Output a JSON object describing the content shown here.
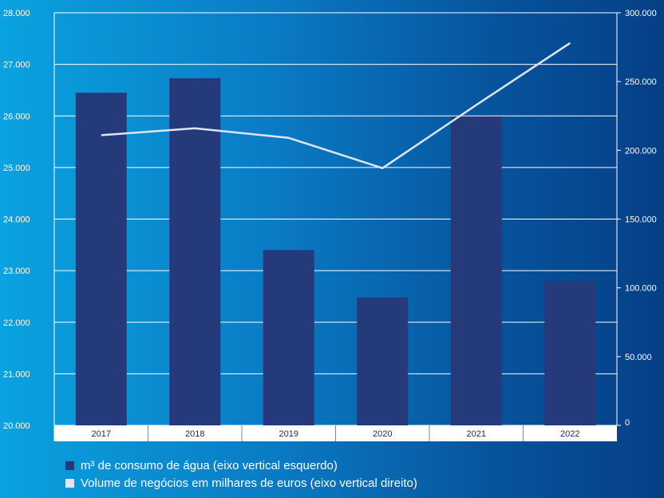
{
  "chart_data": {
    "type": "bar",
    "categories": [
      "2017",
      "2018",
      "2019",
      "2020",
      "2021",
      "2022"
    ],
    "series": [
      {
        "name": "m³ de consumo de água (eixo vertical esquerdo)",
        "type": "bar",
        "axis": "left",
        "values": [
          26450,
          26730,
          23400,
          22480,
          25990,
          22800
        ]
      },
      {
        "name": "Volume de negócios em milhares de euros (eixo vertical direito)",
        "type": "line",
        "axis": "right",
        "values": [
          211000,
          216000,
          209000,
          187000,
          233000,
          278000
        ]
      }
    ],
    "y_left": {
      "range": [
        20000,
        28000
      ],
      "ticks": [
        "20.000",
        "21.000",
        "22.000",
        "23.000",
        "24.000",
        "25.000",
        "26.000",
        "27.000",
        "28.000"
      ]
    },
    "y_right": {
      "range": [
        0,
        300000
      ],
      "ticks": [
        "0",
        "50.000",
        "100.000",
        "150.000",
        "200.000",
        "250.000",
        "300.000"
      ]
    },
    "grid": true,
    "legend_position": "bottom-left"
  },
  "colors": {
    "bar": "#253a7a",
    "line": "#dde6f1",
    "grid": "#ffffff",
    "category_bg": "#ffffff",
    "category_text": "#1a2a5c"
  },
  "legend": [
    {
      "label": "m³ de consumo de água (eixo vertical esquerdo)",
      "color": "#253a7a"
    },
    {
      "label": "Volume de negócios em milhares de euros (eixo vertical direito)",
      "color": "#dde6f1"
    }
  ]
}
